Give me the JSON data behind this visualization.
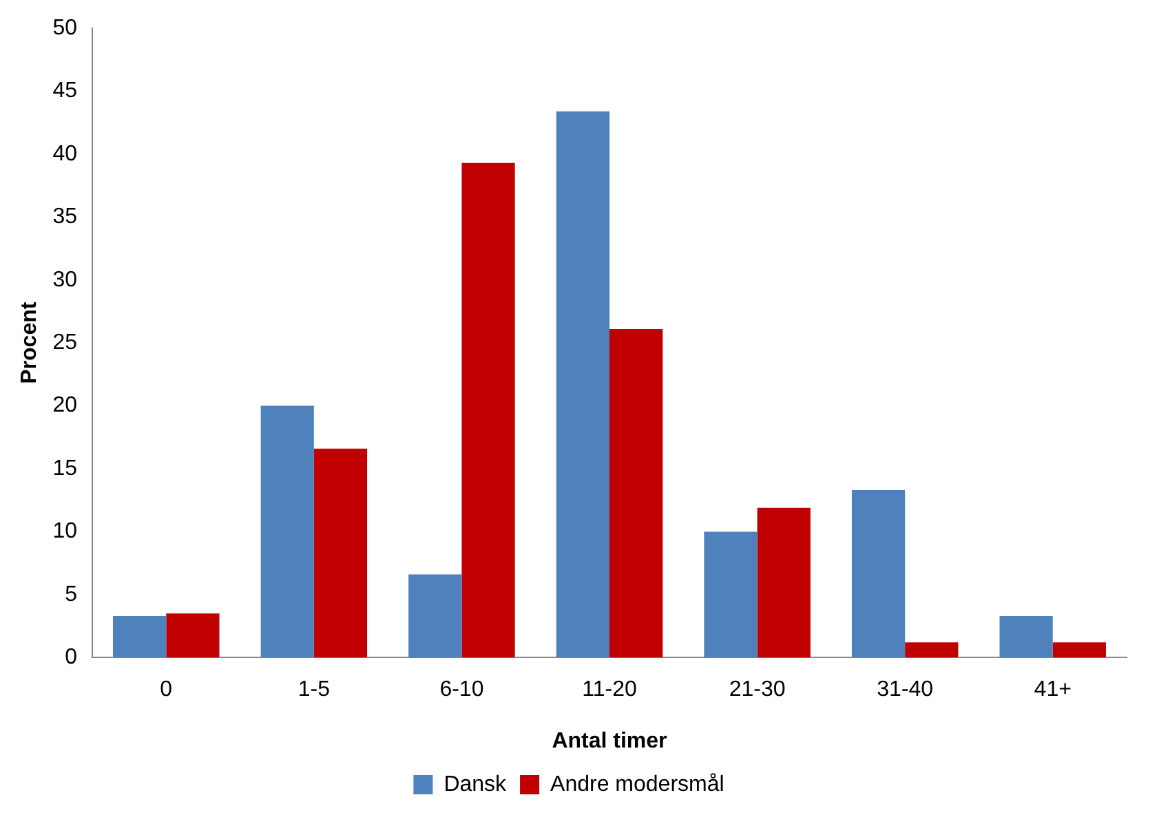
{
  "chart_data": {
    "type": "bar",
    "xlabel": "Antal timer",
    "ylabel": "Procent",
    "categories": [
      "0",
      "1-5",
      "6-10",
      "11-20",
      "21-30",
      "31-40",
      "41+"
    ],
    "series": [
      {
        "name": "Dansk",
        "color": "#4f81bd",
        "values": [
          3.3,
          20.0,
          6.6,
          43.4,
          10.0,
          13.3,
          3.3
        ]
      },
      {
        "name": "Andre modersmål",
        "color": "#c00000",
        "values": [
          3.5,
          16.6,
          39.3,
          26.1,
          11.9,
          1.2,
          1.2
        ]
      }
    ],
    "ylim": [
      0,
      50
    ],
    "yticks": [
      0,
      5,
      10,
      15,
      20,
      25,
      30,
      35,
      40,
      45,
      50
    ],
    "grid": false,
    "legend": "bottom"
  }
}
